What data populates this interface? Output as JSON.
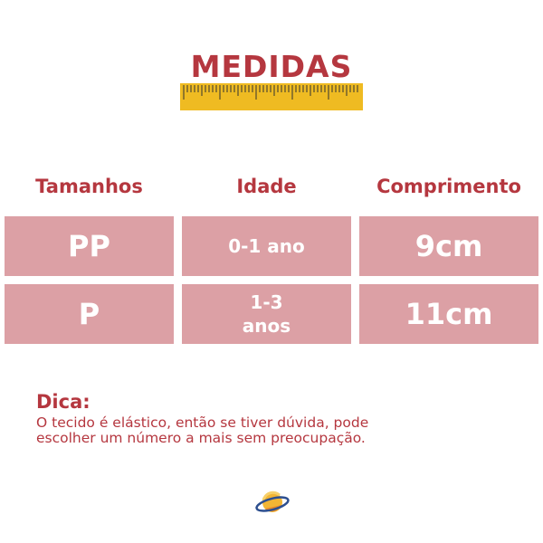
{
  "title": "MEDIDAS",
  "table": {
    "headers": [
      "Tamanhos",
      "Idade",
      "Comprimento"
    ],
    "rows": [
      {
        "size": "PP",
        "age": "0-1 ano",
        "length": "9cm"
      },
      {
        "size": "P",
        "age": "1-3 anos",
        "length": "11cm"
      }
    ]
  },
  "tip": {
    "label": "Dica:",
    "text": "O tecido é elástico, então se tiver dúvida, pode escolher um número a mais sem preocupação."
  },
  "colors": {
    "accent": "#b5373f",
    "cell": "#dca0a5",
    "ruler": "#efbb22"
  },
  "icons": [
    "ruler-icon",
    "planet-icon"
  ]
}
